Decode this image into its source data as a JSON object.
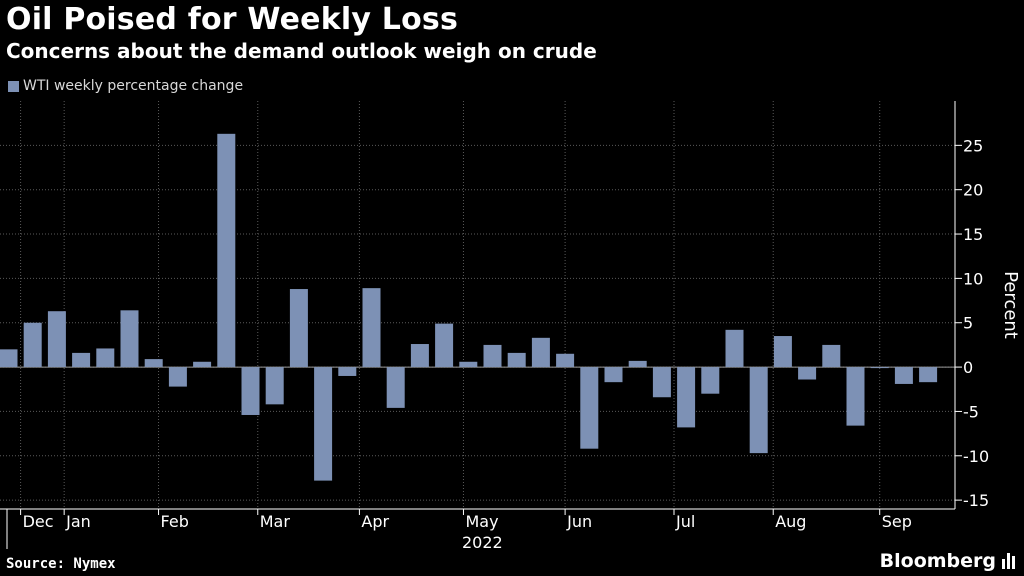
{
  "header": {
    "title": "Oil Poised for Weekly Loss",
    "subtitle": "Concerns about the demand outlook weigh on crude"
  },
  "footer": {
    "source": "Source: Nymex",
    "brand": "Bloomberg"
  },
  "colors": {
    "background": "#000000",
    "bar": "#7d91b5",
    "grid": "#5a5a5a",
    "text": "#ffffff"
  },
  "chart_data": {
    "type": "bar",
    "series": [
      {
        "name": "WTI weekly percentage change",
        "values": [
          2.0,
          5.0,
          6.3,
          1.6,
          2.1,
          6.4,
          0.9,
          -2.2,
          0.6,
          26.3,
          -5.4,
          -4.2,
          8.8,
          -12.8,
          -1.0,
          8.9,
          -4.6,
          2.6,
          4.9,
          0.6,
          2.5,
          1.6,
          3.3,
          1.5,
          -9.2,
          -1.7,
          0.7,
          -3.4,
          -6.8,
          -3.0,
          4.2,
          -9.7,
          3.5,
          -1.4,
          2.5,
          -6.6,
          0.0,
          -1.9,
          -1.7
        ]
      }
    ],
    "x_tick_labels": [
      "Dec",
      "Jan",
      "Feb",
      "Mar",
      "Apr",
      "May",
      "Jun",
      "Jul",
      "Aug",
      "Sep"
    ],
    "x_tick_weeks": [
      0.5,
      2.3,
      6.2,
      10.3,
      14.5,
      18.8,
      23.0,
      27.5,
      31.6,
      36.0
    ],
    "x_sublabel": "2022",
    "ylabel": "Percent",
    "ylim": [
      -16,
      30
    ],
    "y_ticks": [
      -15,
      -10,
      -5,
      0,
      5,
      10,
      15,
      20,
      25
    ],
    "y_axis_side": "right",
    "grid": true,
    "legend_position": "top-left"
  }
}
